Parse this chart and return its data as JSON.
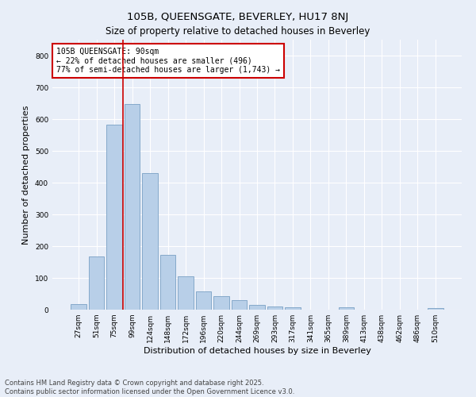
{
  "title": "105B, QUEENSGATE, BEVERLEY, HU17 8NJ",
  "subtitle": "Size of property relative to detached houses in Beverley",
  "xlabel": "Distribution of detached houses by size in Beverley",
  "ylabel": "Number of detached properties",
  "categories": [
    "27sqm",
    "51sqm",
    "75sqm",
    "99sqm",
    "124sqm",
    "148sqm",
    "172sqm",
    "196sqm",
    "220sqm",
    "244sqm",
    "269sqm",
    "293sqm",
    "317sqm",
    "341sqm",
    "365sqm",
    "389sqm",
    "413sqm",
    "438sqm",
    "462sqm",
    "486sqm",
    "510sqm"
  ],
  "values": [
    18,
    168,
    582,
    648,
    430,
    173,
    105,
    58,
    42,
    30,
    15,
    10,
    8,
    0,
    0,
    7,
    0,
    0,
    0,
    0,
    5
  ],
  "bar_color": "#b8cfe8",
  "bar_edge_color": "#7aa0c4",
  "vline_color": "#cc0000",
  "vline_x_idx": 2.5,
  "annotation_text": "105B QUEENSGATE: 90sqm\n← 22% of detached houses are smaller (496)\n77% of semi-detached houses are larger (1,743) →",
  "annotation_box_facecolor": "#ffffff",
  "annotation_box_edgecolor": "#cc0000",
  "ylim": [
    0,
    850
  ],
  "yticks": [
    0,
    100,
    200,
    300,
    400,
    500,
    600,
    700,
    800
  ],
  "background_color": "#e8eef8",
  "plot_background_color": "#e8eef8",
  "footer_line1": "Contains HM Land Registry data © Crown copyright and database right 2025.",
  "footer_line2": "Contains public sector information licensed under the Open Government Licence v3.0.",
  "title_fontsize": 9.5,
  "subtitle_fontsize": 8.5,
  "axis_label_fontsize": 8,
  "tick_fontsize": 6.5,
  "annotation_fontsize": 7,
  "footer_fontsize": 6
}
